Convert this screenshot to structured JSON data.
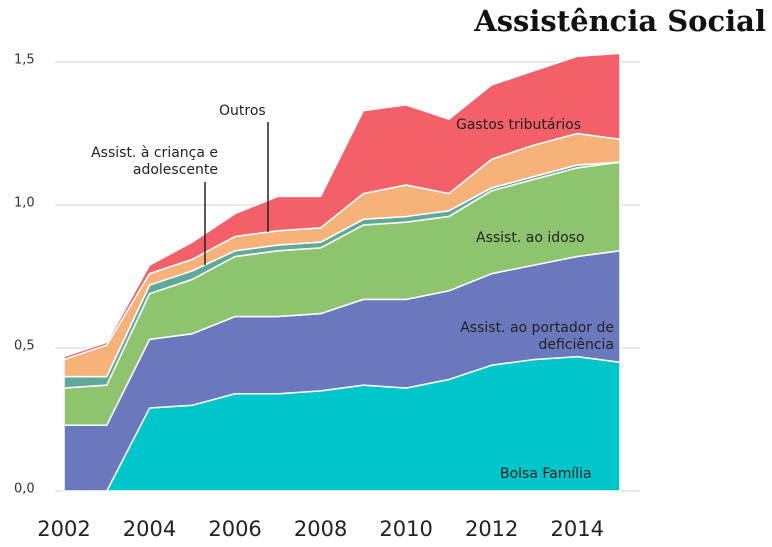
{
  "chart_data": {
    "type": "stacked_area",
    "title": "Assistência Social",
    "x": [
      2002,
      2003,
      2004,
      2005,
      2006,
      2007,
      2008,
      2009,
      2010,
      2011,
      2012,
      2013,
      2014,
      2015
    ],
    "xlim": [
      2002,
      2015
    ],
    "xticks": [
      2002,
      2004,
      2006,
      2008,
      2010,
      2012,
      2014
    ],
    "ylim": [
      0,
      1.5
    ],
    "yticks": [
      {
        "value": 0,
        "label": "0,0"
      },
      {
        "value": 0.5,
        "label": "0,5"
      },
      {
        "value": 1,
        "label": "1,0"
      },
      {
        "value": 1.5,
        "label": "1,5"
      }
    ],
    "grid": true,
    "series": [
      {
        "name": "Bolsa Família",
        "color": "#00c6cc",
        "values": [
          0,
          0,
          0.29,
          0.3,
          0.34,
          0.34,
          0.35,
          0.37,
          0.36,
          0.39,
          0.44,
          0.46,
          0.47,
          0.45
        ]
      },
      {
        "name": "Assist. ao portador de deficiência",
        "color": "#6a79bd",
        "values": [
          0.23,
          0.23,
          0.24,
          0.25,
          0.27,
          0.27,
          0.27,
          0.3,
          0.31,
          0.31,
          0.32,
          0.33,
          0.35,
          0.39
        ]
      },
      {
        "name": "Assist. ao idoso",
        "color": "#8fc46f",
        "values": [
          0.13,
          0.14,
          0.16,
          0.19,
          0.21,
          0.23,
          0.23,
          0.26,
          0.27,
          0.26,
          0.29,
          0.3,
          0.31,
          0.31
        ]
      },
      {
        "name": "Assist. à criança e adolescente",
        "color": "#5fa89a",
        "values": [
          0.04,
          0.03,
          0.03,
          0.03,
          0.02,
          0.02,
          0.02,
          0.02,
          0.02,
          0.02,
          0.01,
          0.01,
          0.01,
          0
        ]
      },
      {
        "name": "Outros",
        "color": "#f7b27a",
        "values": [
          0.06,
          0.11,
          0.04,
          0.04,
          0.05,
          0.05,
          0.05,
          0.09,
          0.11,
          0.06,
          0.1,
          0.11,
          0.11,
          0.08
        ]
      },
      {
        "name": "Gastos tributários",
        "color": "#f3606a",
        "values": [
          0.01,
          0.01,
          0.03,
          0.06,
          0.08,
          0.12,
          0.11,
          0.29,
          0.28,
          0.26,
          0.26,
          0.26,
          0.27,
          0.3
        ]
      }
    ]
  }
}
